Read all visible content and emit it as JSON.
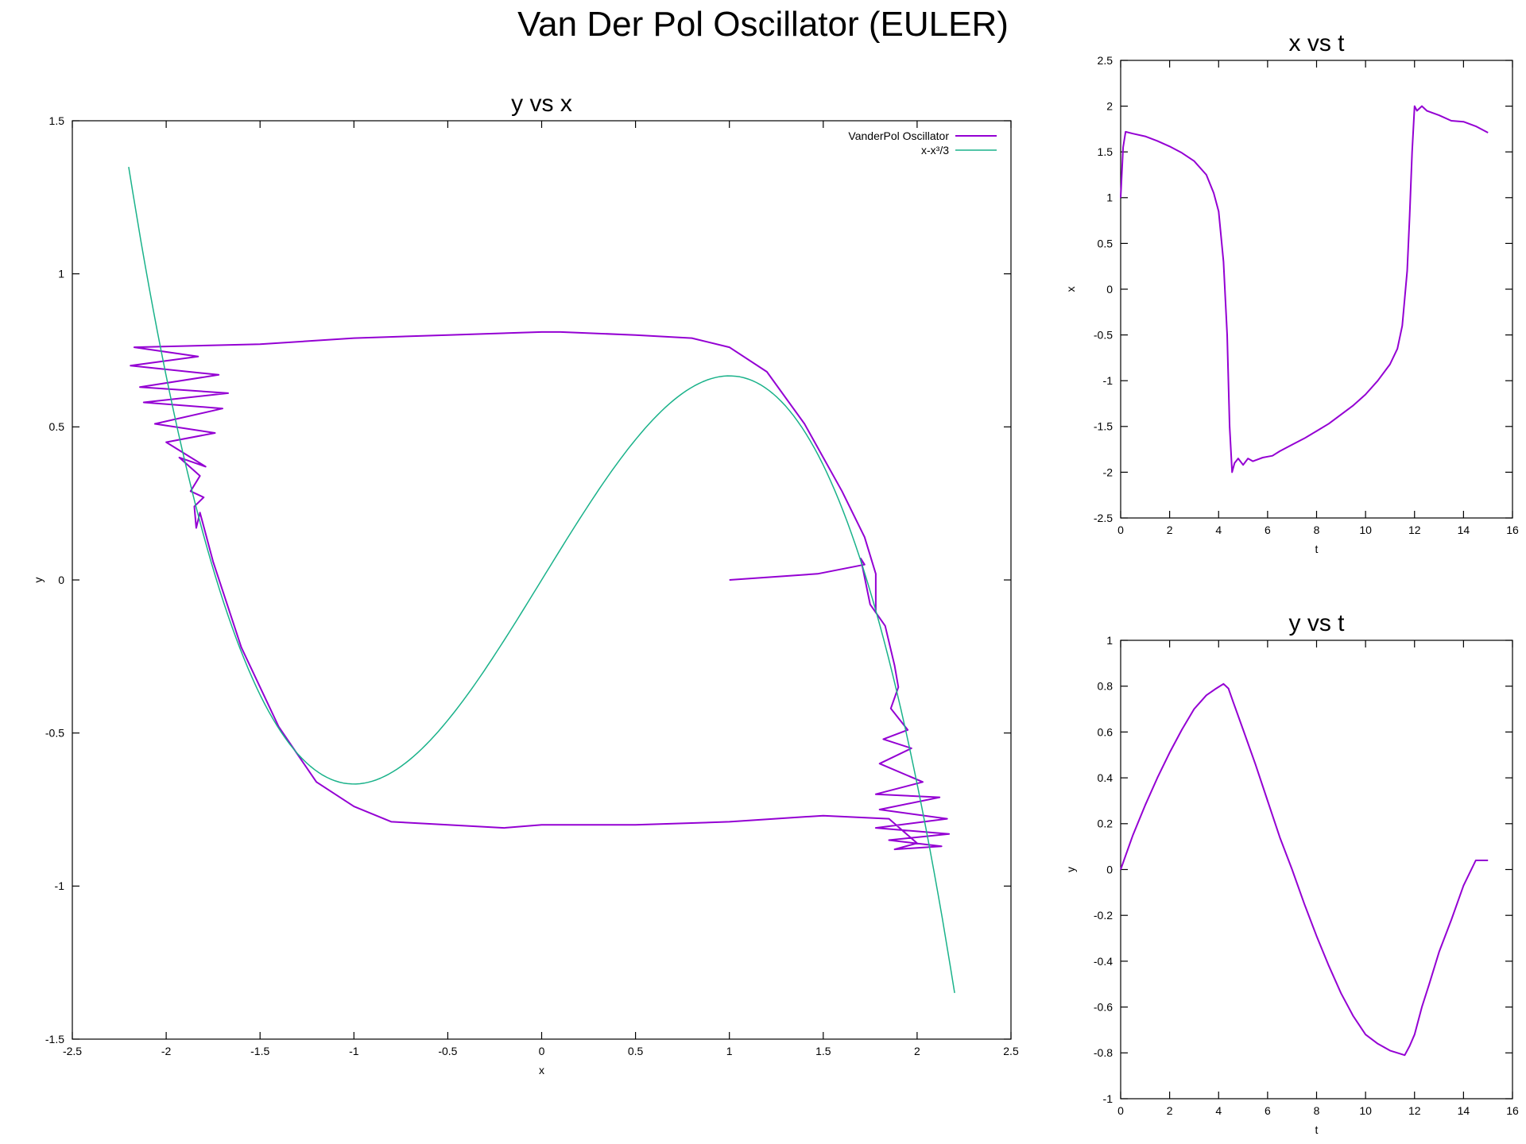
{
  "figure": {
    "title": "Van Der Pol Oscillator (EULER)"
  },
  "chart_data": [
    {
      "type": "line",
      "title": "y vs x",
      "xlabel": "x",
      "ylabel": "y",
      "xlim": [
        -2.5,
        2.5
      ],
      "ylim": [
        -1.5,
        1.5
      ],
      "xticks": [
        -2.5,
        -2,
        -1.5,
        -1,
        -0.5,
        0,
        0.5,
        1,
        1.5,
        2,
        2.5
      ],
      "yticks": [
        -1.5,
        -1,
        -0.5,
        0,
        0.5,
        1,
        1.5
      ],
      "grid": false,
      "legend": "top-right",
      "series": [
        {
          "name": "VanderPol Oscillator",
          "color": "#9400d3",
          "x": [
            1.0,
            1.47,
            1.72,
            1.7,
            1.75,
            1.83,
            1.88,
            1.9,
            1.86,
            1.95,
            1.82,
            1.97,
            1.8,
            2.03,
            1.78,
            2.12,
            1.8,
            2.16,
            1.78,
            2.17,
            1.85,
            2.13,
            1.88,
            2.0,
            1.85,
            1.5,
            1.0,
            0.5,
            0.0,
            -0.2,
            -0.5,
            -0.8,
            -1.0,
            -1.2,
            -1.4,
            -1.6,
            -1.75,
            -1.82,
            -1.84,
            -1.85,
            -1.8,
            -1.87,
            -1.82,
            -1.93,
            -1.79,
            -2.0,
            -1.74,
            -2.06,
            -1.7,
            -2.12,
            -1.67,
            -2.14,
            -1.72,
            -2.19,
            -1.83,
            -2.17,
            -1.5,
            -1.0,
            -0.5,
            0.0,
            0.1,
            0.5,
            0.8,
            1.0,
            1.2,
            1.4,
            1.6,
            1.72,
            1.78,
            1.78
          ],
          "y": [
            0.0,
            0.02,
            0.05,
            0.07,
            -0.08,
            -0.15,
            -0.28,
            -0.35,
            -0.42,
            -0.49,
            -0.52,
            -0.55,
            -0.6,
            -0.66,
            -0.7,
            -0.71,
            -0.75,
            -0.78,
            -0.81,
            -0.83,
            -0.85,
            -0.87,
            -0.88,
            -0.86,
            -0.78,
            -0.77,
            -0.79,
            -0.8,
            -0.8,
            -0.81,
            -0.8,
            -0.79,
            -0.74,
            -0.66,
            -0.48,
            -0.22,
            0.06,
            0.22,
            0.17,
            0.24,
            0.27,
            0.29,
            0.34,
            0.4,
            0.37,
            0.45,
            0.48,
            0.51,
            0.56,
            0.58,
            0.61,
            0.63,
            0.67,
            0.7,
            0.73,
            0.76,
            0.77,
            0.79,
            0.8,
            0.81,
            0.81,
            0.8,
            0.79,
            0.76,
            0.68,
            0.51,
            0.29,
            0.14,
            0.02,
            -0.1
          ]
        },
        {
          "name": "x-x³/3",
          "color": "#1ab28a",
          "function": "x-x^3/3",
          "domain": [
            -2.2,
            2.2
          ]
        }
      ]
    },
    {
      "type": "line",
      "title": "x vs t",
      "xlabel": "t",
      "ylabel": "x",
      "xlim": [
        0,
        16
      ],
      "ylim": [
        -2.5,
        2.5
      ],
      "xticks": [
        0,
        2,
        4,
        6,
        8,
        10,
        12,
        14,
        16
      ],
      "yticks": [
        -2.5,
        -2,
        -1.5,
        -1,
        -0.5,
        0,
        0.5,
        1,
        1.5,
        2,
        2.5
      ],
      "grid": false,
      "series": [
        {
          "color": "#9400d3",
          "x": [
            0,
            0.1,
            0.2,
            0.5,
            1.0,
            1.5,
            2.0,
            2.5,
            3.0,
            3.5,
            3.8,
            4.0,
            4.2,
            4.35,
            4.45,
            4.55,
            4.65,
            4.8,
            5.0,
            5.2,
            5.4,
            5.6,
            5.8,
            6.0,
            6.2,
            6.5,
            7.0,
            7.5,
            8.0,
            8.5,
            9.0,
            9.5,
            10.0,
            10.5,
            11.0,
            11.3,
            11.5,
            11.7,
            11.8,
            11.9,
            12.0,
            12.1,
            12.3,
            12.5,
            12.7,
            13.0,
            13.5,
            14.0,
            14.5,
            15.0
          ],
          "y": [
            1.0,
            1.55,
            1.72,
            1.7,
            1.67,
            1.62,
            1.56,
            1.49,
            1.4,
            1.25,
            1.05,
            0.85,
            0.3,
            -0.5,
            -1.5,
            -2.0,
            -1.9,
            -1.85,
            -1.92,
            -1.85,
            -1.88,
            -1.86,
            -1.84,
            -1.83,
            -1.82,
            -1.77,
            -1.7,
            -1.63,
            -1.55,
            -1.47,
            -1.37,
            -1.27,
            -1.15,
            -1.0,
            -0.82,
            -0.65,
            -0.4,
            0.2,
            0.8,
            1.5,
            2.0,
            1.95,
            2.0,
            1.95,
            1.93,
            1.9,
            1.84,
            1.83,
            1.78,
            1.71
          ]
        }
      ]
    },
    {
      "type": "line",
      "title": "y vs t",
      "xlabel": "t",
      "ylabel": "y",
      "xlim": [
        0,
        16
      ],
      "ylim": [
        -1,
        1
      ],
      "xticks": [
        0,
        2,
        4,
        6,
        8,
        10,
        12,
        14,
        16
      ],
      "yticks": [
        -1,
        -0.8,
        -0.6,
        -0.4,
        -0.2,
        0,
        0.2,
        0.4,
        0.6,
        0.8,
        1
      ],
      "grid": false,
      "series": [
        {
          "color": "#9400d3",
          "x": [
            0,
            0.5,
            1.0,
            1.5,
            2.0,
            2.5,
            3.0,
            3.5,
            3.9,
            4.2,
            4.4,
            4.6,
            5.0,
            5.5,
            6.0,
            6.5,
            7.0,
            7.5,
            8.0,
            8.5,
            9.0,
            9.5,
            10.0,
            10.5,
            11.0,
            11.3,
            11.6,
            11.8,
            12.0,
            12.3,
            12.6,
            13.0,
            13.5,
            14.0,
            14.5,
            15.0
          ],
          "y": [
            0.0,
            0.15,
            0.28,
            0.4,
            0.51,
            0.61,
            0.7,
            0.76,
            0.79,
            0.81,
            0.79,
            0.73,
            0.61,
            0.46,
            0.3,
            0.14,
            0.0,
            -0.15,
            -0.29,
            -0.42,
            -0.54,
            -0.64,
            -0.72,
            -0.76,
            -0.79,
            -0.8,
            -0.81,
            -0.77,
            -0.72,
            -0.6,
            -0.5,
            -0.36,
            -0.22,
            -0.07,
            0.04,
            0.04
          ]
        }
      ]
    }
  ]
}
